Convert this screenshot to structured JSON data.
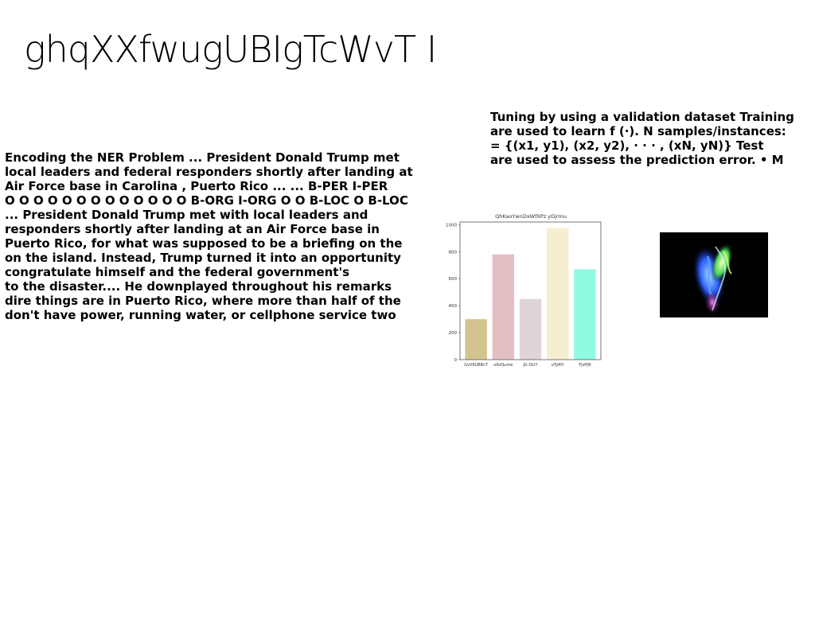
{
  "page": {
    "title": "ghqXXfwugUBIgTcWvT I"
  },
  "body_text": {
    "lines": [
      "Encoding the NER Problem ... President Donald Trump met",
      "local leaders and federal responders shortly after landing at",
      "Air Force base in Carolina , Puerto Rico ... ... B-PER I-PER",
      "O O O O O O O O O O O O O B-ORG I-ORG O O B-LOC O B-LOC",
      "... President Donald Trump met with local leaders and",
      "responders shortly after landing at an Air Force base in",
      "Puerto Rico, for what was supposed to be a briefing on the",
      "on the island. Instead, Trump turned it into an opportunity",
      "congratulate himself and the federal government's",
      "to the disaster.... He downplayed throughout his remarks",
      "dire things are in Puerto Rico, where more than half of the",
      "don't have power, running water, or cellphone service two"
    ]
  },
  "side_text": {
    "lines": [
      "Tuning by using a validation dataset Training",
      "are used to learn f (·). N samples/instances:",
      "= {(x1, y1), (x2, y2), · · · , (xN, yN)} Test",
      "are used to assess the prediction error. • M"
    ]
  },
  "chart_data": {
    "type": "bar",
    "title": "QhKaoYwnDxWfXPz yDjrmu",
    "categories": [
      "GvVKUBBcT",
      "oKzQume",
      "JG OLIY",
      "oTyRYi",
      "FJzPJN"
    ],
    "values": [
      300,
      780,
      450,
      975,
      670
    ],
    "colors": [
      "#d3c38f",
      "#e3bfc4",
      "#dfd4da",
      "#f6efcf",
      "#90fbe1"
    ],
    "ylim": [
      0,
      1020
    ],
    "yticks": [
      0,
      200,
      400,
      600,
      800,
      1000
    ],
    "xlabel": "",
    "ylabel": "",
    "grid": false
  },
  "image": {
    "icon": "abstract-light-image"
  }
}
